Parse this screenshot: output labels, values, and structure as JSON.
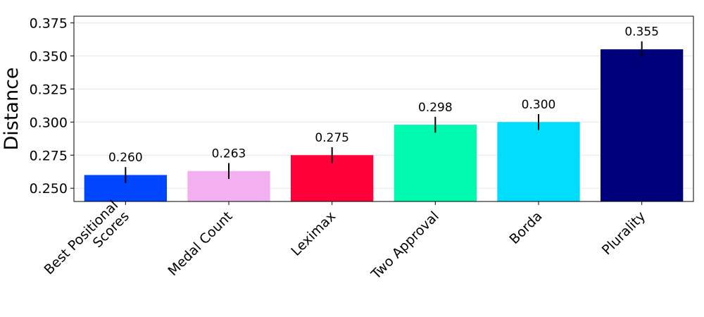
{
  "chart_data": {
    "type": "bar",
    "categories": [
      [
        "Best Positional",
        "Scores"
      ],
      [
        "Medal Count"
      ],
      [
        "Leximax"
      ],
      [
        "Two Approval"
      ],
      [
        "Borda"
      ],
      [
        "Plurality"
      ]
    ],
    "values": [
      0.26,
      0.263,
      0.275,
      0.298,
      0.3,
      0.355
    ],
    "value_labels": [
      "0.260",
      "0.263",
      "0.275",
      "0.298",
      "0.300",
      "0.355"
    ],
    "error": [
      0.006,
      0.006,
      0.006,
      0.006,
      0.006,
      0.006
    ],
    "colors": [
      "#0046ff",
      "#f2b0f0",
      "#ff0039",
      "#00fbb0",
      "#00ddfd",
      "#00007b"
    ],
    "ylabel": "Distance",
    "xlabel": "",
    "ylim": [
      0.24,
      0.38
    ],
    "yticks": [
      0.25,
      0.275,
      0.3,
      0.325,
      0.35,
      0.375
    ],
    "ytick_labels": [
      "0.250",
      "0.275",
      "0.300",
      "0.325",
      "0.350",
      "0.375"
    ],
    "grid": "horizontal",
    "legend": "none"
  }
}
